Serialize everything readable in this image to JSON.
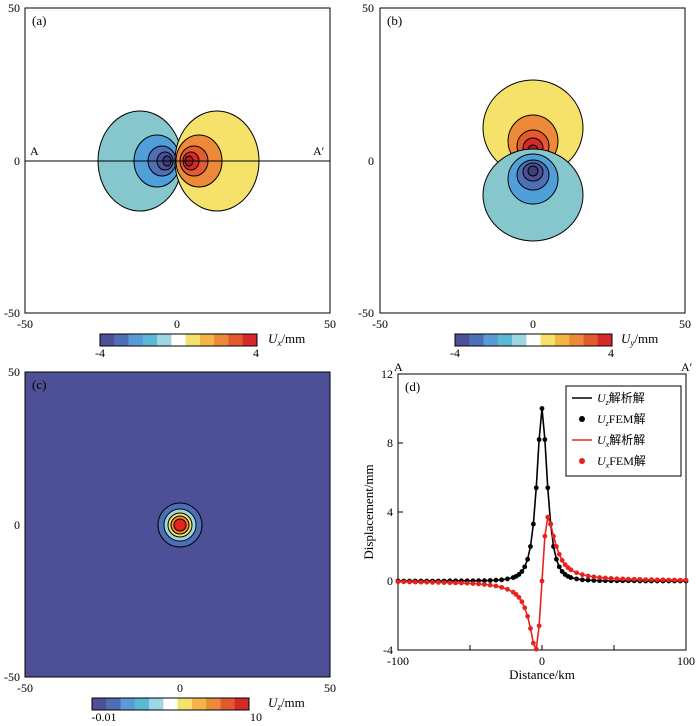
{
  "figure": {
    "panels": [
      {
        "id": "a",
        "label": "(a)",
        "type": "heatmap",
        "field": "Ux",
        "x_range": [
          -50,
          50
        ],
        "y_range": [
          -50,
          50
        ],
        "x_ticks": [
          "-50",
          "0",
          "50"
        ],
        "y_ticks": [
          "50",
          "0",
          "-50"
        ],
        "profile_line": {
          "start_label": "A",
          "end_label": "A′",
          "y": 0
        },
        "colorbar": {
          "min_label": "-4",
          "max_label": "4",
          "var": "U",
          "sub": "x",
          "unit": "/mm"
        }
      },
      {
        "id": "b",
        "label": "(b)",
        "type": "heatmap",
        "field": "Uy",
        "x_range": [
          -50,
          50
        ],
        "y_range": [
          -50,
          50
        ],
        "x_ticks": [
          "-50",
          "0",
          "50"
        ],
        "y_ticks": [
          "50",
          "0",
          "-50"
        ],
        "colorbar": {
          "min_label": "-4",
          "max_label": "4",
          "var": "U",
          "sub": "y",
          "unit": "/mm"
        }
      },
      {
        "id": "c",
        "label": "(c)",
        "type": "heatmap",
        "field": "Uz",
        "x_range": [
          -50,
          50
        ],
        "y_range": [
          -50,
          50
        ],
        "x_ticks": [
          "-50",
          "0",
          "50"
        ],
        "y_ticks": [
          "50",
          "0",
          "-50"
        ],
        "colorbar": {
          "min_label": "-0.01",
          "max_label": "10",
          "var": "U",
          "sub": "z",
          "unit": "/mm"
        }
      }
    ],
    "palette": [
      "#4d4f97",
      "#4d6fb5",
      "#5b9bd5",
      "#5bb8d6",
      "#9fd6e3",
      "#ffffff",
      "#f6e26b",
      "#f4b642",
      "#ec8a3a",
      "#e45a2f",
      "#d6292a"
    ]
  },
  "chart_data": {
    "type": "line",
    "label": "(d)",
    "xlabel": "Distance/km",
    "ylabel": "Displacement/mm",
    "xlim": [
      -100,
      100
    ],
    "ylim": [
      -4,
      12
    ],
    "x_ticks": [
      "-100",
      "0",
      "100"
    ],
    "y_ticks": [
      "12",
      "8",
      "4",
      "0",
      "-4"
    ],
    "start_label": "A",
    "end_label": "A′",
    "legend": [
      {
        "var": "U",
        "sub": "z",
        "text": "解析解",
        "style": "line",
        "color": "#000000"
      },
      {
        "var": "U",
        "sub": "z",
        "text": "FEM解",
        "style": "dot",
        "color": "#000000"
      },
      {
        "var": "U",
        "sub": "x",
        "text": "解析解",
        "style": "line",
        "color": "#e8231f"
      },
      {
        "var": "U",
        "sub": "x",
        "text": "FEM解",
        "style": "dot",
        "color": "#e8231f"
      }
    ],
    "series": [
      {
        "name": "Uz",
        "color": "#000000",
        "x": [
          -100,
          -96,
          -92,
          -88,
          -84,
          -80,
          -76,
          -72,
          -68,
          -64,
          -60,
          -56,
          -52,
          -48,
          -44,
          -40,
          -36,
          -32,
          -28,
          -24,
          -20,
          -18,
          -16,
          -14,
          -12,
          -10,
          -8,
          -6,
          -4,
          -2,
          0,
          2,
          4,
          6,
          8,
          10,
          12,
          14,
          16,
          18,
          20,
          24,
          28,
          32,
          36,
          40,
          44,
          48,
          52,
          56,
          60,
          64,
          68,
          72,
          76,
          80,
          84,
          88,
          92,
          96,
          100
        ],
        "values": [
          0.0,
          0.0,
          0.0,
          0.0,
          0.0,
          0.0,
          0.0,
          0.0,
          0.0,
          0.01,
          0.01,
          0.01,
          0.01,
          0.01,
          0.02,
          0.02,
          0.03,
          0.05,
          0.07,
          0.12,
          0.2,
          0.27,
          0.38,
          0.55,
          0.82,
          1.26,
          2.0,
          3.3,
          5.4,
          8.2,
          10.0,
          8.2,
          5.4,
          3.3,
          2.0,
          1.26,
          0.82,
          0.55,
          0.38,
          0.27,
          0.2,
          0.12,
          0.07,
          0.05,
          0.03,
          0.02,
          0.02,
          0.01,
          0.01,
          0.01,
          0.01,
          0.01,
          0.0,
          0.0,
          0.0,
          0.0,
          0.0,
          0.0,
          0.0,
          0.0,
          0.0
        ]
      },
      {
        "name": "Ux",
        "color": "#e8231f",
        "x": [
          -100,
          -96,
          -92,
          -88,
          -84,
          -80,
          -76,
          -72,
          -68,
          -64,
          -60,
          -56,
          -52,
          -48,
          -44,
          -40,
          -36,
          -32,
          -28,
          -24,
          -20,
          -18,
          -16,
          -14,
          -12,
          -10,
          -8,
          -6,
          -4,
          -2,
          0,
          2,
          4,
          6,
          8,
          10,
          12,
          14,
          16,
          18,
          20,
          24,
          28,
          32,
          36,
          40,
          44,
          48,
          52,
          56,
          60,
          64,
          68,
          72,
          76,
          80,
          84,
          88,
          92,
          96,
          100
        ],
        "values": [
          -0.05,
          -0.05,
          -0.06,
          -0.06,
          -0.07,
          -0.07,
          -0.08,
          -0.08,
          -0.09,
          -0.1,
          -0.11,
          -0.12,
          -0.13,
          -0.15,
          -0.17,
          -0.2,
          -0.24,
          -0.29,
          -0.37,
          -0.48,
          -0.65,
          -0.78,
          -0.95,
          -1.2,
          -1.55,
          -2.05,
          -2.75,
          -3.6,
          -3.95,
          -2.6,
          0.0,
          2.6,
          3.7,
          3.3,
          2.6,
          2.0,
          1.55,
          1.2,
          0.95,
          0.78,
          0.65,
          0.48,
          0.37,
          0.29,
          0.24,
          0.2,
          0.17,
          0.15,
          0.13,
          0.12,
          0.11,
          0.1,
          0.09,
          0.08,
          0.08,
          0.07,
          0.07,
          0.06,
          0.06,
          0.05,
          0.05
        ]
      }
    ]
  }
}
